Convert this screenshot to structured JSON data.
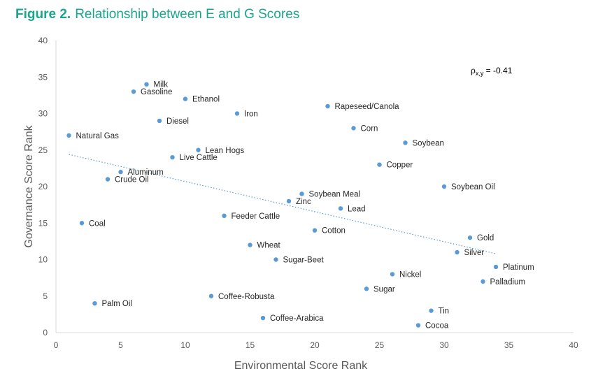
{
  "figure": {
    "number": "Figure 2.",
    "title": "Relationship between E and G Scores"
  },
  "chart_data": {
    "type": "scatter",
    "xlabel": "Environmental Score Rank",
    "ylabel": "Governance Score Rank",
    "xlim": [
      0,
      40
    ],
    "ylim": [
      0,
      40
    ],
    "xticks": [
      0,
      5,
      10,
      15,
      20,
      25,
      30,
      35,
      40
    ],
    "yticks": [
      0,
      5,
      10,
      15,
      20,
      25,
      30,
      35,
      40
    ],
    "annotation": {
      "prefix": "ρ",
      "subscript": "x,y",
      "text": " = -0.41"
    },
    "trendline": {
      "style": "dotted",
      "x": [
        1,
        34
      ],
      "y": [
        24.4,
        10.8
      ]
    },
    "point_color": "#5b9bd5",
    "trend_color": "#5b9bd5",
    "points": [
      {
        "label": "Natural Gas",
        "x": 1,
        "y": 27
      },
      {
        "label": "Coal",
        "x": 2,
        "y": 15
      },
      {
        "label": "Palm Oil",
        "x": 3,
        "y": 4
      },
      {
        "label": "Crude Oil",
        "x": 4,
        "y": 21
      },
      {
        "label": "Aluminum",
        "x": 5,
        "y": 22
      },
      {
        "label": "Gasoline",
        "x": 6,
        "y": 33
      },
      {
        "label": "Milk",
        "x": 7,
        "y": 34
      },
      {
        "label": "Diesel",
        "x": 8,
        "y": 29
      },
      {
        "label": "Live Cattle",
        "x": 9,
        "y": 24
      },
      {
        "label": "Ethanol",
        "x": 10,
        "y": 32
      },
      {
        "label": "Lean Hogs",
        "x": 11,
        "y": 25
      },
      {
        "label": "Coffee-Robusta",
        "x": 12,
        "y": 5
      },
      {
        "label": "Feeder Cattle",
        "x": 13,
        "y": 16
      },
      {
        "label": "Iron",
        "x": 14,
        "y": 30
      },
      {
        "label": "Wheat",
        "x": 15,
        "y": 12
      },
      {
        "label": "Coffee-Arabica",
        "x": 16,
        "y": 2
      },
      {
        "label": "Sugar-Beet",
        "x": 17,
        "y": 10
      },
      {
        "label": "Zinc",
        "x": 18,
        "y": 18
      },
      {
        "label": "Soybean Meal",
        "x": 19,
        "y": 19
      },
      {
        "label": "Cotton",
        "x": 20,
        "y": 14
      },
      {
        "label": "Rapeseed/Canola",
        "x": 21,
        "y": 31
      },
      {
        "label": "Lead",
        "x": 22,
        "y": 17
      },
      {
        "label": "Corn",
        "x": 23,
        "y": 28
      },
      {
        "label": "Sugar",
        "x": 24,
        "y": 6
      },
      {
        "label": "Copper",
        "x": 25,
        "y": 23
      },
      {
        "label": "Nickel",
        "x": 26,
        "y": 8
      },
      {
        "label": "Soybean",
        "x": 27,
        "y": 26
      },
      {
        "label": "Cocoa",
        "x": 28,
        "y": 1
      },
      {
        "label": "Tin",
        "x": 29,
        "y": 3
      },
      {
        "label": "Soybean Oil",
        "x": 30,
        "y": 20
      },
      {
        "label": "Silver",
        "x": 31,
        "y": 11
      },
      {
        "label": "Gold",
        "x": 32,
        "y": 13
      },
      {
        "label": "Palladium",
        "x": 33,
        "y": 7
      },
      {
        "label": "Platinum",
        "x": 34,
        "y": 9
      }
    ]
  }
}
